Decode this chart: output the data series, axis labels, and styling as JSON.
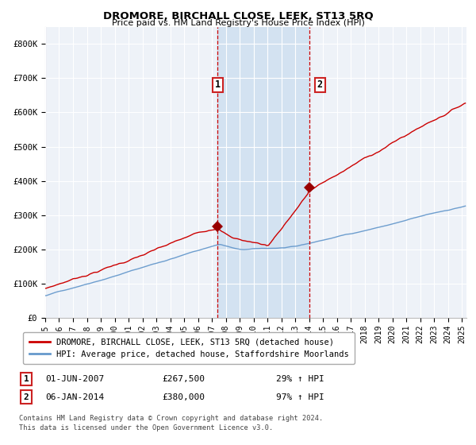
{
  "title": "DROMORE, BIRCHALL CLOSE, LEEK, ST13 5RQ",
  "subtitle": "Price paid vs. HM Land Registry's House Price Index (HPI)",
  "red_line_label": "DROMORE, BIRCHALL CLOSE, LEEK, ST13 5RQ (detached house)",
  "blue_line_label": "HPI: Average price, detached house, Staffordshire Moorlands",
  "annotation1_date": "01-JUN-2007",
  "annotation1_price": "£267,500",
  "annotation1_hpi": "29% ↑ HPI",
  "annotation2_date": "06-JAN-2014",
  "annotation2_price": "£380,000",
  "annotation2_hpi": "97% ↑ HPI",
  "ylabel_ticks": [
    "£0",
    "£100K",
    "£200K",
    "£300K",
    "£400K",
    "£500K",
    "£600K",
    "£700K",
    "£800K"
  ],
  "ytick_vals": [
    0,
    100000,
    200000,
    300000,
    400000,
    500000,
    600000,
    700000,
    800000
  ],
  "ylim": [
    0,
    850000
  ],
  "footer1": "Contains HM Land Registry data © Crown copyright and database right 2024.",
  "footer2": "This data is licensed under the Open Government Licence v3.0.",
  "shade_start": "2007-06-01",
  "shade_end": "2014-01-01",
  "plot_bg_color": "#eef2f8",
  "grid_color": "#ffffff",
  "red_color": "#cc0000",
  "blue_color": "#6699cc",
  "shade_color": "#cfe0f0"
}
